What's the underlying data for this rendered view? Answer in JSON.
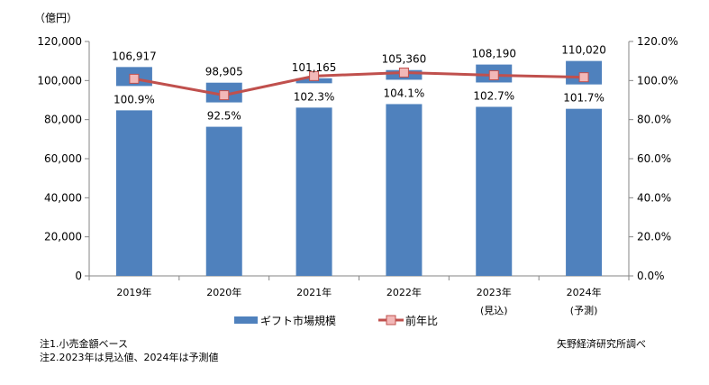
{
  "chart_data": {
    "type": "bar",
    "unit_label": "（億円）",
    "categories": [
      "2019年",
      "2020年",
      "2021年",
      "2022年",
      "2023年",
      "2024年"
    ],
    "category_sublabels": [
      "",
      "",
      "",
      "",
      "(見込)",
      "(予測)"
    ],
    "series": [
      {
        "name": "ギフト市場規模",
        "type": "bar",
        "axis": "left",
        "color": "#4F81BD",
        "values": [
          106917,
          98905,
          101165,
          105360,
          108190,
          110020
        ],
        "labels": [
          "106,917",
          "98,905",
          "101,165",
          "105,360",
          "108,190",
          "110,020"
        ]
      },
      {
        "name": "前年比",
        "type": "line",
        "axis": "right",
        "color": "#C0504D",
        "marker_color": "#F2B8B8",
        "values": [
          100.9,
          92.5,
          102.3,
          104.1,
          102.7,
          101.7
        ],
        "labels": [
          "100.9%",
          "92.5%",
          "102.3%",
          "104.1%",
          "102.7%",
          "101.7%"
        ]
      }
    ],
    "y_left": {
      "range": [
        0,
        120000
      ],
      "ticks": [
        "0",
        "20,000",
        "40,000",
        "60,000",
        "80,000",
        "100,000",
        "120,000"
      ]
    },
    "y_right": {
      "range": [
        0,
        120
      ],
      "ticks": [
        "0.0%",
        "20.0%",
        "40.0%",
        "60.0%",
        "80.0%",
        "100.0%",
        "120.0%"
      ]
    },
    "grid": false,
    "legend_position": "bottom"
  },
  "notes": [
    "注1.小売金額ベース",
    "注2.2023年は見込値、2024年は予測値"
  ],
  "source": "矢野経済研究所調べ"
}
